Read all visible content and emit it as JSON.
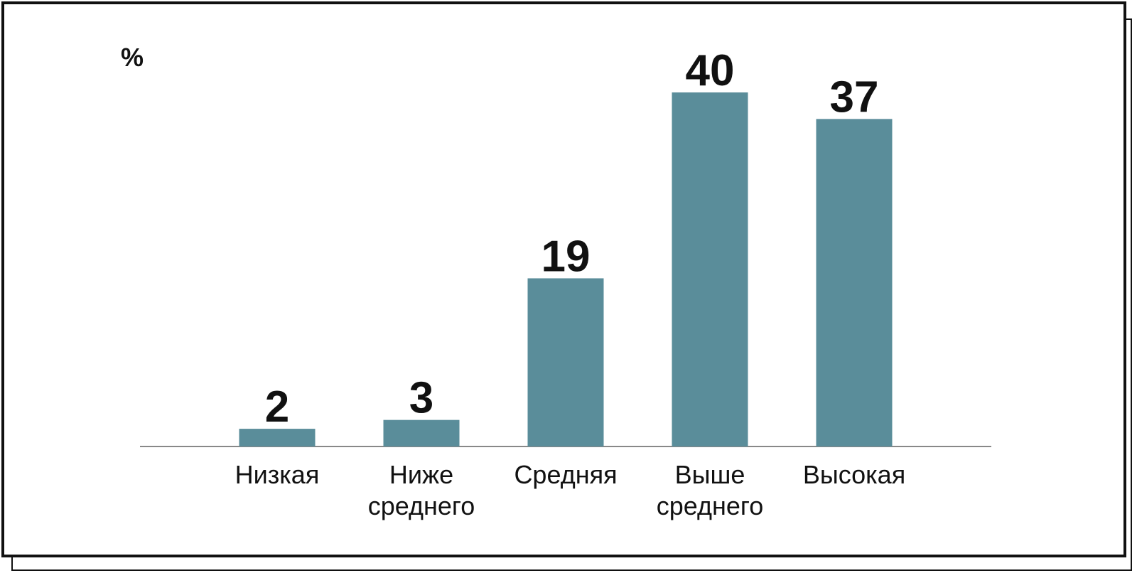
{
  "chart_data": {
    "type": "bar",
    "ylabel": "%",
    "categories": [
      "Низкая",
      "Ниже среднего",
      "Средняя",
      "Выше среднего",
      "Высокая"
    ],
    "category_lines": [
      [
        "Низкая"
      ],
      [
        "Ниже",
        "среднего"
      ],
      [
        "Средняя"
      ],
      [
        "Выше",
        "среднего"
      ],
      [
        "Высокая"
      ]
    ],
    "values": [
      2,
      3,
      19,
      40,
      37
    ],
    "ylim": [
      0,
      40
    ],
    "grid": false,
    "bar_color": "#5a8d9a",
    "axis_color": "#888888",
    "data_labels": true
  }
}
